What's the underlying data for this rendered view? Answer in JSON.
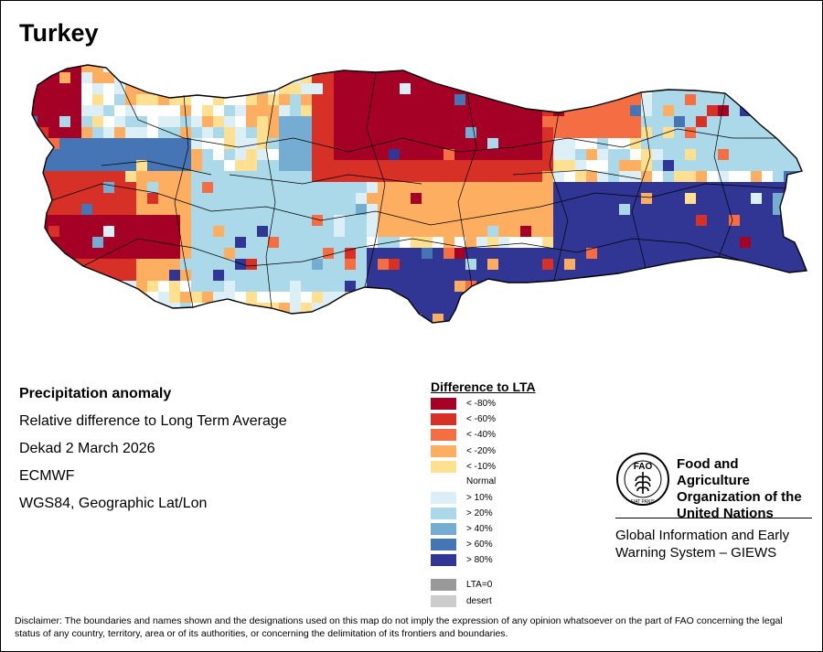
{
  "title": "Turkey",
  "info": {
    "product": "Precipitation anomaly",
    "description": "Relative difference to Long Term Average",
    "period": "Dekad 2 March 2026",
    "source": "ECMWF",
    "projection": "WGS84, Geographic Lat/Lon"
  },
  "legend": {
    "title": "Difference to LTA",
    "normal_label": "Normal",
    "items": [
      {
        "label": "< -80%",
        "color": "#a50026"
      },
      {
        "label": "< -60%",
        "color": "#d73027"
      },
      {
        "label": "< -40%",
        "color": "#f46d43"
      },
      {
        "label": "< -20%",
        "color": "#fdae61"
      },
      {
        "label": "< -10%",
        "color": "#fee090"
      },
      {
        "label": "> 10%",
        "color": "#dceff7"
      },
      {
        "label": "> 20%",
        "color": "#abd9e9"
      },
      {
        "label": "> 40%",
        "color": "#74add1"
      },
      {
        "label": "> 60%",
        "color": "#4575b4"
      },
      {
        "label": "> 80%",
        "color": "#313695"
      },
      {
        "label": "LTA=0",
        "color": "#999999"
      },
      {
        "label": "desert",
        "color": "#cccccc"
      }
    ]
  },
  "organization": {
    "line1": "Food and Agriculture",
    "line2": "Organization of the",
    "line3": "United Nations",
    "logo_text": "FAO",
    "logo_motto": "FIAT PANIS",
    "system_line1": "Global Information and Early",
    "system_line2": "Warning System – GIEWS"
  },
  "disclaimer": "Disclaimer: The boundaries and names shown and the designations used on this map do not imply the expression of any opinion whatsoever on the part of FAO concerning the legal status of any country, territory, area or of its authorities, or concerning the delimitation of its frontiers and boundaries."
}
